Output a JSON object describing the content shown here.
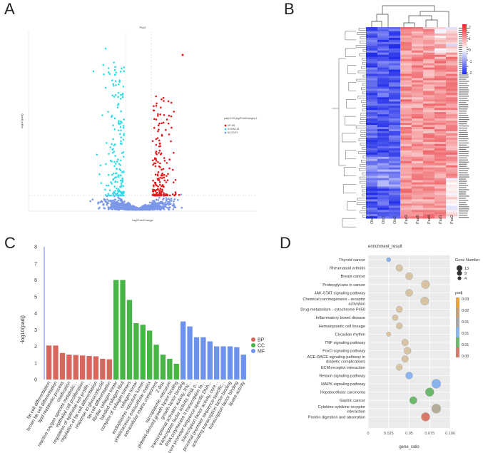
{
  "panels": {
    "a": {
      "label": "A"
    },
    "b": {
      "label": "B"
    },
    "c": {
      "label": "C"
    },
    "d": {
      "label": "D"
    }
  },
  "volcano": {
    "title": "Plot2",
    "xlabel": "log2FoldChange",
    "ylabel": "-log10(padj)",
    "legend_title": "padj<0.05 |log2FoldChange|>1",
    "legend_items": [
      "UP:181",
      "DOWN:192",
      "NO:20471"
    ],
    "colors": {
      "up": "#e31a1c",
      "down": "#33dde6",
      "no": "#7b97e8"
    }
  },
  "heatmap": {
    "columns": [
      "Old3",
      "Old1",
      "Old2",
      "Pad3",
      "Pad5",
      "Pad4",
      "Pad1",
      "Pad2"
    ],
    "colorbar_ticks": [
      "2",
      "1",
      "0",
      "-1",
      "-2"
    ],
    "colors": {
      "high": "#e8242a",
      "mid": "#ffffff",
      "low": "#1f2be8"
    }
  },
  "chart_data": [
    {
      "type": "bar",
      "title": "",
      "xlabel": "",
      "ylabel": "-log10(padj)",
      "ylim": [
        0,
        8
      ],
      "yticks": [
        "0",
        "1",
        "2",
        "3",
        "4",
        "5",
        "6",
        "7",
        "8"
      ],
      "legend": [
        {
          "name": "BP",
          "color": "#d9665c"
        },
        {
          "name": "CC",
          "color": "#46b545"
        },
        {
          "name": "MF",
          "color": "#6c92ee"
        }
      ],
      "categories": [
        {
          "name": "fat cell differentiation",
          "group": "BP",
          "value": 2.05
        },
        {
          "name": "brown fat cell differentiation",
          "group": "BP",
          "value": 2.05
        },
        {
          "name": "lipid metabolic process",
          "group": "BP",
          "value": 1.6
        },
        {
          "name": "ossification",
          "group": "BP",
          "value": 1.5
        },
        {
          "name": "reactive oxygen species metabolic...",
          "group": "BP",
          "value": 1.48
        },
        {
          "name": "epithelial cell proliferation",
          "group": "BP",
          "value": 1.45
        },
        {
          "name": "regulation of epithelial cell prolife...",
          "group": "BP",
          "value": 1.42
        },
        {
          "name": "regulation of fat cell differentiation",
          "group": "BP",
          "value": 1.4
        },
        {
          "name": "response to glucocorticoid",
          "group": "BP",
          "value": 1.25
        },
        {
          "name": "fat cell differentiation",
          "group": "BP",
          "value": 1.22
        },
        {
          "name": "fibrillar collagen trimer",
          "group": "CC",
          "value": 6.0
        },
        {
          "name": "banded collagen fibril",
          "group": "CC",
          "value": 6.0
        },
        {
          "name": "complex of collagen trimers",
          "group": "CC",
          "value": 4.8
        },
        {
          "name": "collagen trimer",
          "group": "CC",
          "value": 3.4
        },
        {
          "name": "endoplasmic reticulum lumen",
          "group": "CC",
          "value": 3.3
        },
        {
          "name": "proteinaceous extracellular matrix",
          "group": "CC",
          "value": 2.95
        },
        {
          "name": "extracellular matrix component",
          "group": "CC",
          "value": 2.1
        },
        {
          "name": "Z disc",
          "group": "CC",
          "value": 1.5
        },
        {
          "name": "sarcoplasmic reticulum",
          "group": "CC",
          "value": 1.25
        },
        {
          "name": "platelet-derived growth factor binding",
          "group": "CC",
          "value": 0.95
        },
        {
          "name": "growth factor binding",
          "group": "MF",
          "value": 3.5
        },
        {
          "name": "transcriptional activator activity, RN...",
          "group": "MF",
          "value": 3.2
        },
        {
          "name": "transcription factor activity, RNA p...",
          "group": "MF",
          "value": 2.55
        },
        {
          "name": "RNA polymerase II transcription fa...",
          "group": "MF",
          "value": 2.55
        },
        {
          "name": "core promoter sequence-specific DNA...",
          "group": "MF",
          "value": 2.3
        },
        {
          "name": "transcription factor activity, core...",
          "group": "MF",
          "value": 2.0
        },
        {
          "name": "proximal promoter sequence-specific...",
          "group": "MF",
          "value": 2.0
        },
        {
          "name": "activating transcription factor binding",
          "group": "MF",
          "value": 2.0
        },
        {
          "name": "transcription factor binding",
          "group": "MF",
          "value": 1.95
        },
        {
          "name": "lipase activity",
          "group": "MF",
          "value": 1.5
        }
      ]
    },
    {
      "type": "scatter",
      "title": "enrichment_result",
      "xlabel": "gene_ratio",
      "ylabel": "",
      "xlim": [
        0,
        0.1
      ],
      "xticks": [
        "0",
        "0.025",
        "0.05",
        "0.075",
        "0.100"
      ],
      "size_legend_title": "Gene Number",
      "size_legend": [
        13,
        9,
        4
      ],
      "color_legend_title": "padj",
      "color_legend_ticks": [
        "0.03",
        "0.02",
        "0.01",
        "0.01",
        "0.01",
        "0.00"
      ],
      "points": [
        {
          "term": "Thyroid cancer",
          "ratio": 0.025,
          "genes": 2,
          "padj": 0.012
        },
        {
          "term": "Rheumatoid arthritis",
          "ratio": 0.038,
          "genes": 6,
          "padj": 0.024
        },
        {
          "term": "Breast cancer",
          "ratio": 0.05,
          "genes": 7,
          "padj": 0.022
        },
        {
          "term": "Proteoglycans in cancer",
          "ratio": 0.07,
          "genes": 10,
          "padj": 0.022
        },
        {
          "term": "JAK-STAT signaling pathway",
          "ratio": 0.05,
          "genes": 7,
          "padj": 0.022
        },
        {
          "term": "Chemical carcinogenesis - receptor activation",
          "ratio": 0.069,
          "genes": 10,
          "padj": 0.022
        },
        {
          "term": "Drug metabolism - cytochrome P450",
          "ratio": 0.038,
          "genes": 5,
          "padj": 0.022
        },
        {
          "term": "Inflammatory bowel disease",
          "ratio": 0.033,
          "genes": 4,
          "padj": 0.022
        },
        {
          "term": "Hematopoietic cell lineage",
          "ratio": 0.038,
          "genes": 5,
          "padj": 0.022
        },
        {
          "term": "Circadian rhythm",
          "ratio": 0.025,
          "genes": 2,
          "padj": 0.022
        },
        {
          "term": "TNF signaling pathway",
          "ratio": 0.045,
          "genes": 6,
          "padj": 0.024
        },
        {
          "term": "FoxO signaling pathway",
          "ratio": 0.048,
          "genes": 7,
          "padj": 0.024
        },
        {
          "term": "AGE-RAGE signaling pathway in diabetic complications",
          "ratio": 0.045,
          "genes": 6,
          "padj": 0.024
        },
        {
          "term": "ECM-receptor interaction",
          "ratio": 0.038,
          "genes": 5,
          "padj": 0.024
        },
        {
          "term": "Relaxin signaling pathway",
          "ratio": 0.05,
          "genes": 7,
          "padj": 0.013
        },
        {
          "term": "MAPK signaling pathway",
          "ratio": 0.083,
          "genes": 13,
          "padj": 0.012
        },
        {
          "term": "Hepatocellular carcinoma",
          "ratio": 0.075,
          "genes": 11,
          "padj": 0.008
        },
        {
          "term": "Gastric cancer",
          "ratio": 0.055,
          "genes": 8,
          "padj": 0.007
        },
        {
          "term": "Cytokine-cytokine receptor interaction",
          "ratio": 0.083,
          "genes": 13,
          "padj": 0.02
        },
        {
          "term": "Protein digestion and absorption",
          "ratio": 0.07,
          "genes": 11,
          "padj": 0.002
        }
      ]
    }
  ]
}
